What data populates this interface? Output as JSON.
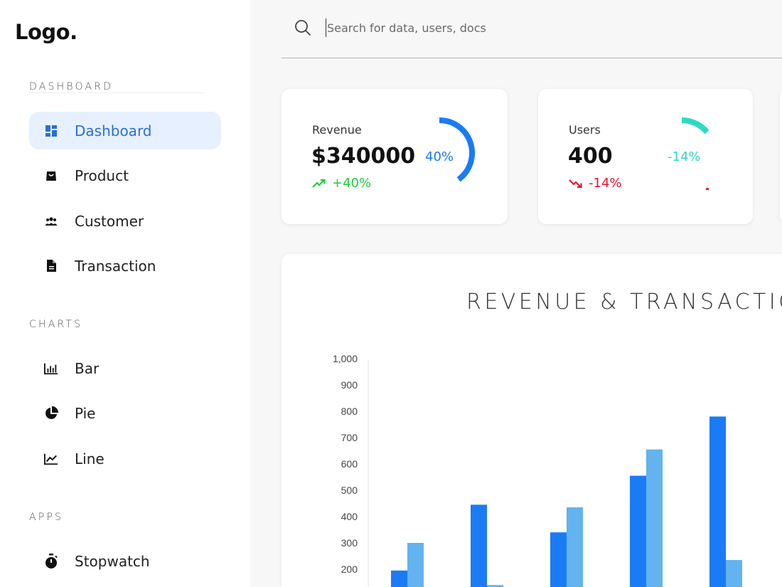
{
  "logo": "Logo.",
  "sidebar": {
    "sections": [
      {
        "title": "DASHBOARD",
        "items": [
          {
            "label": "Dashboard",
            "icon": "dashboard-icon",
            "active": true
          },
          {
            "label": "Product",
            "icon": "shopping-bag-icon"
          },
          {
            "label": "Customer",
            "icon": "people-icon"
          },
          {
            "label": "Transaction",
            "icon": "document-icon"
          }
        ]
      },
      {
        "title": "CHARTS",
        "items": [
          {
            "label": "Bar",
            "icon": "bar-chart-icon"
          },
          {
            "label": "Pie",
            "icon": "pie-chart-icon"
          },
          {
            "label": "Line",
            "icon": "line-chart-icon"
          }
        ]
      },
      {
        "title": "APPS",
        "items": [
          {
            "label": "Stopwatch",
            "icon": "stopwatch-icon"
          }
        ]
      }
    ]
  },
  "search": {
    "placeholder": "Search for data, users, docs",
    "value": ""
  },
  "cards": [
    {
      "label": "Revenue",
      "value": "$340000",
      "change": "+40%",
      "trend": "up",
      "percent": "40%",
      "ring_fraction": 0.4,
      "color": "#1a7bf5",
      "change_color": "#1fcc3c"
    },
    {
      "label": "Users",
      "value": "400",
      "change": "-14%",
      "trend": "down",
      "percent": "-14%",
      "ring_fraction": 0.14,
      "color": "#2ed9c3",
      "change_color": "#e8132b"
    }
  ],
  "colors": {
    "accent": "#2b6fd6",
    "active_bg": "#e6f0ff",
    "bar_primary": "#1a7bf5",
    "bar_secondary": "#62b3ef"
  },
  "chart_data": {
    "type": "bar",
    "title": "REVENUE & TRANSACTION",
    "yticks": [
      "1,000",
      "900",
      "800",
      "700",
      "600",
      "500",
      "400",
      "300",
      "200"
    ],
    "ylim": [
      0,
      1000
    ],
    "series": [
      {
        "values": [
          195,
          445,
          340,
          555,
          780
        ],
        "color": "#1a7bf5"
      },
      {
        "values": [
          300,
          140,
          435,
          655,
          235
        ],
        "color": "#62b3ef"
      }
    ]
  }
}
